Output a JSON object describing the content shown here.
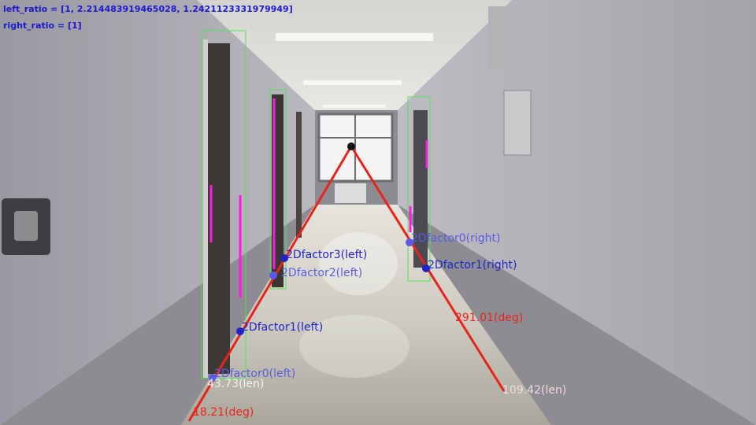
{
  "hud": {
    "left_ratio": "left_ratio = [1, 2.214483919465028, 1.2421123331979949]",
    "right_ratio": "right_ratio = [1]"
  },
  "colors": {
    "line": "#e8231c",
    "factor_dot": "#2222c8",
    "factor_dot_light": "#5a5ae6",
    "box": "#58e058",
    "marker": "#ff19e6",
    "vanishing_point": "#111111"
  },
  "vanishing_point": "vanishing-point-dot",
  "labels": {
    "left_factor3": "2Dfactor3(left)",
    "left_factor2": "2Dfactor2(left)",
    "left_factor1": "2Dfactor1(left)",
    "left_factor0": "2Dfactor0(left)",
    "right_factor0": "2Dfactor0(right)",
    "right_factor1": "2Dfactor1(right)",
    "left_len": "43.73(len)",
    "left_deg": "18.21(deg)",
    "right_deg": "291.01(deg)",
    "right_len": "109.42(len)"
  }
}
